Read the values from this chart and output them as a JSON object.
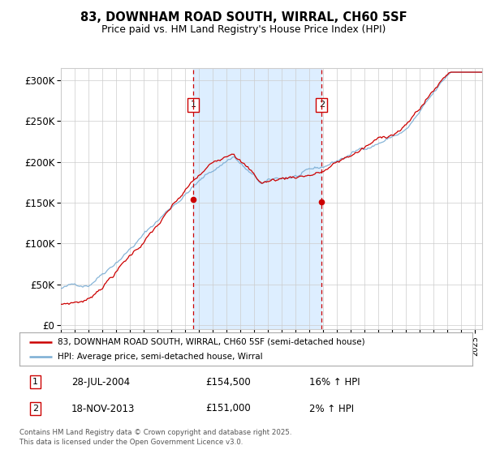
{
  "title": "83, DOWNHAM ROAD SOUTH, WIRRAL, CH60 5SF",
  "subtitle": "Price paid vs. HM Land Registry's House Price Index (HPI)",
  "ylabel_ticks": [
    "£0",
    "£50K",
    "£100K",
    "£150K",
    "£200K",
    "£250K",
    "£300K"
  ],
  "ytick_vals": [
    0,
    50000,
    100000,
    150000,
    200000,
    250000,
    300000
  ],
  "ylim": [
    -5000,
    315000
  ],
  "sale1_price": 154500,
  "sale2_price": 151000,
  "sale1_x": 2004.57,
  "sale2_x": 2013.88,
  "legend_line1": "83, DOWNHAM ROAD SOUTH, WIRRAL, CH60 5SF (semi-detached house)",
  "legend_line2": "HPI: Average price, semi-detached house, Wirral",
  "footnote": "Contains HM Land Registry data © Crown copyright and database right 2025.\nThis data is licensed under the Open Government Licence v3.0.",
  "line_color_red": "#cc0000",
  "line_color_blue": "#7aadd4",
  "highlight_color": "#ddeeff",
  "grid_color": "#cccccc",
  "background_color": "#ffffff",
  "xlim_left": 1995.0,
  "xlim_right": 2025.5
}
